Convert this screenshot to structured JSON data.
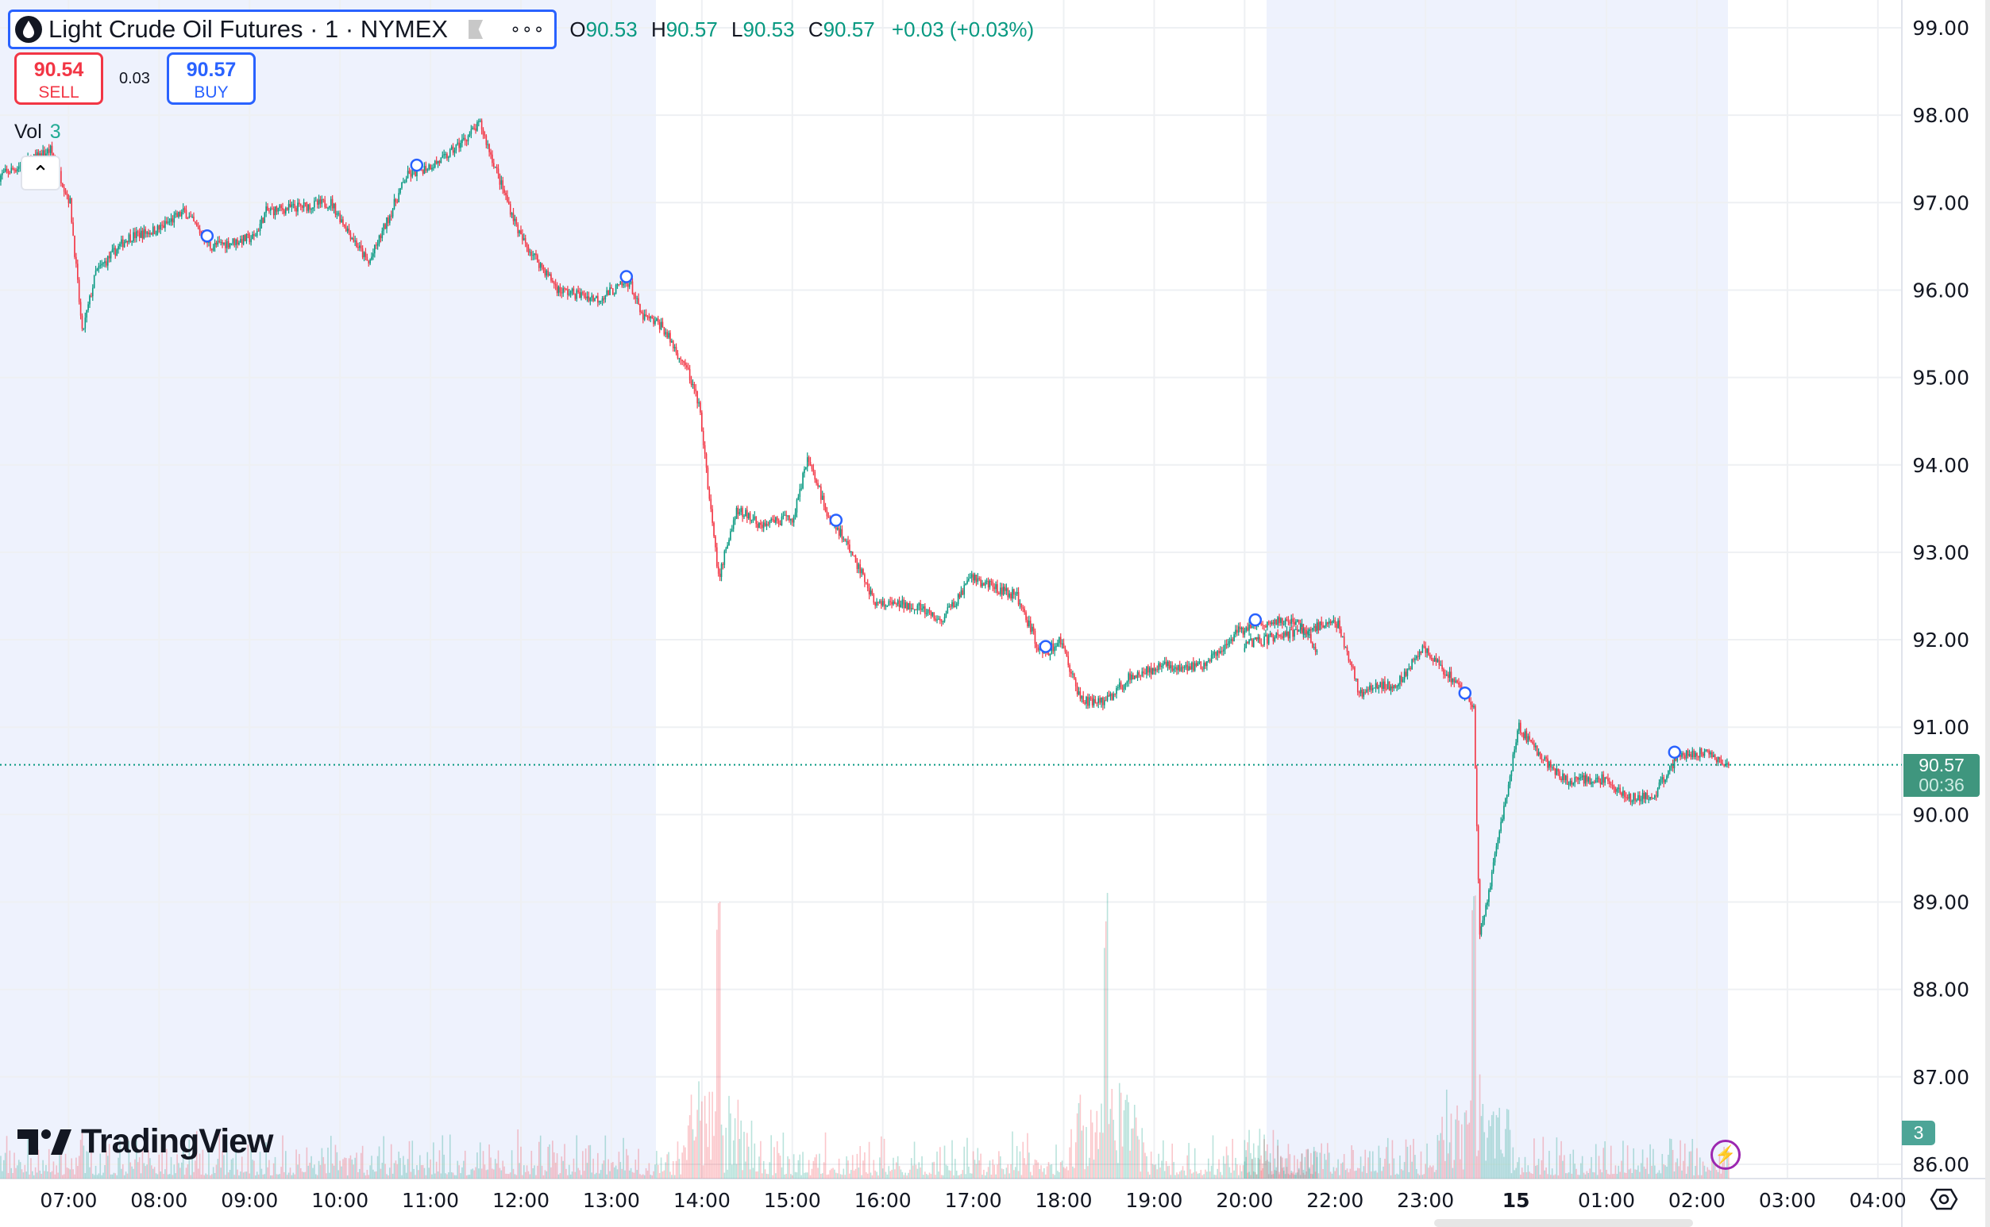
{
  "header": {
    "symbol_title": "Light Crude Oil Futures · 1 · NYMEX",
    "more_icon": "ellipsis-icon",
    "ohlc": {
      "o_label": "O",
      "o": "90.53",
      "h_label": "H",
      "h": "90.57",
      "l_label": "L",
      "l": "90.53",
      "c_label": "C",
      "c": "90.57",
      "change": "+0.03 (+0.03%)"
    }
  },
  "trade": {
    "sell_price": "90.54",
    "sell_label": "SELL",
    "spread": "0.03",
    "buy_price": "90.57",
    "buy_label": "BUY"
  },
  "volume_legend": {
    "label": "Vol",
    "value": "3"
  },
  "last_price": {
    "price": "90.57",
    "countdown": "00:36"
  },
  "volume_last": "3",
  "brand": "TradingView",
  "colors": {
    "up": "#089981",
    "down": "#f23645",
    "session_shade": "#eef2fd",
    "accent": "#2962ff",
    "last_price_bg": "#3f967e"
  },
  "chart_data": {
    "type": "candlestick",
    "interval": "1 minute",
    "price_axis": [
      "99.00",
      "98.00",
      "97.00",
      "96.00",
      "95.00",
      "94.00",
      "93.00",
      "92.00",
      "91.00",
      "90.00",
      "89.00",
      "88.00",
      "87.00",
      "86.00"
    ],
    "ylim": [
      86,
      99
    ],
    "time_axis": [
      "07:00",
      "08:00",
      "09:00",
      "10:00",
      "11:00",
      "12:00",
      "13:00",
      "14:00",
      "15:00",
      "16:00",
      "17:00",
      "18:00",
      "19:00",
      "20:00",
      "22:00",
      "23:00",
      "15",
      "01:00",
      "02:00",
      "03:00",
      "04:00"
    ],
    "grid": true,
    "approx_close": [
      [
        "06:14",
        97.3
      ],
      [
        "06:48",
        97.6
      ],
      [
        "07:01",
        97.0
      ],
      [
        "07:09",
        95.5
      ],
      [
        "07:18",
        96.2
      ],
      [
        "07:39",
        96.6
      ],
      [
        "08:00",
        96.7
      ],
      [
        "08:17",
        96.9
      ],
      [
        "08:34",
        96.5
      ],
      [
        "09:03",
        96.6
      ],
      [
        "09:11",
        96.9
      ],
      [
        "09:54",
        97.0
      ],
      [
        "10:19",
        96.3
      ],
      [
        "10:44",
        97.3
      ],
      [
        "11:09",
        97.5
      ],
      [
        "11:33",
        97.9
      ],
      [
        "11:47",
        97.2
      ],
      [
        "12:00",
        96.6
      ],
      [
        "12:25",
        96.0
      ],
      [
        "12:51",
        95.9
      ],
      [
        "13:12",
        96.1
      ],
      [
        "13:20",
        95.7
      ],
      [
        "13:33",
        95.6
      ],
      [
        "13:50",
        95.1
      ],
      [
        "13:58",
        94.7
      ],
      [
        "14:11",
        92.7
      ],
      [
        "14:23",
        93.5
      ],
      [
        "14:40",
        93.3
      ],
      [
        "15:01",
        93.4
      ],
      [
        "15:10",
        94.1
      ],
      [
        "15:22",
        93.5
      ],
      [
        "15:39",
        93.0
      ],
      [
        "15:56",
        92.4
      ],
      [
        "16:21",
        92.4
      ],
      [
        "16:38",
        92.2
      ],
      [
        "16:59",
        92.7
      ],
      [
        "17:29",
        92.5
      ],
      [
        "17:46",
        91.8
      ],
      [
        "17:58",
        92.0
      ],
      [
        "18:11",
        91.3
      ],
      [
        "18:28",
        91.3
      ],
      [
        "18:45",
        91.6
      ],
      [
        "19:10",
        91.7
      ],
      [
        "19:31",
        91.7
      ],
      [
        "19:56",
        92.1
      ],
      [
        "20:18",
        92.2
      ],
      [
        "20:35",
        92.2
      ],
      [
        "20:48",
        91.9
      ],
      [
        "22:02",
        92.2
      ],
      [
        "22:16",
        91.4
      ],
      [
        "22:41",
        91.5
      ],
      [
        "22:58",
        91.9
      ],
      [
        "23:15",
        91.6
      ],
      [
        "23:32",
        91.2
      ],
      [
        "23:36",
        88.6
      ],
      [
        "23:41",
        89.0
      ],
      [
        "23:49",
        89.8
      ],
      [
        "00:02",
        91.0
      ],
      [
        "00:15",
        90.7
      ],
      [
        "00:32",
        90.4
      ],
      [
        "00:57",
        90.4
      ],
      [
        "01:14",
        90.2
      ],
      [
        "01:31",
        90.2
      ],
      [
        "01:48",
        90.7
      ],
      [
        "02:04",
        90.7
      ],
      [
        "02:21",
        90.57
      ]
    ],
    "volume_spikes": [
      "14:11",
      "18:28",
      "23:32"
    ]
  }
}
